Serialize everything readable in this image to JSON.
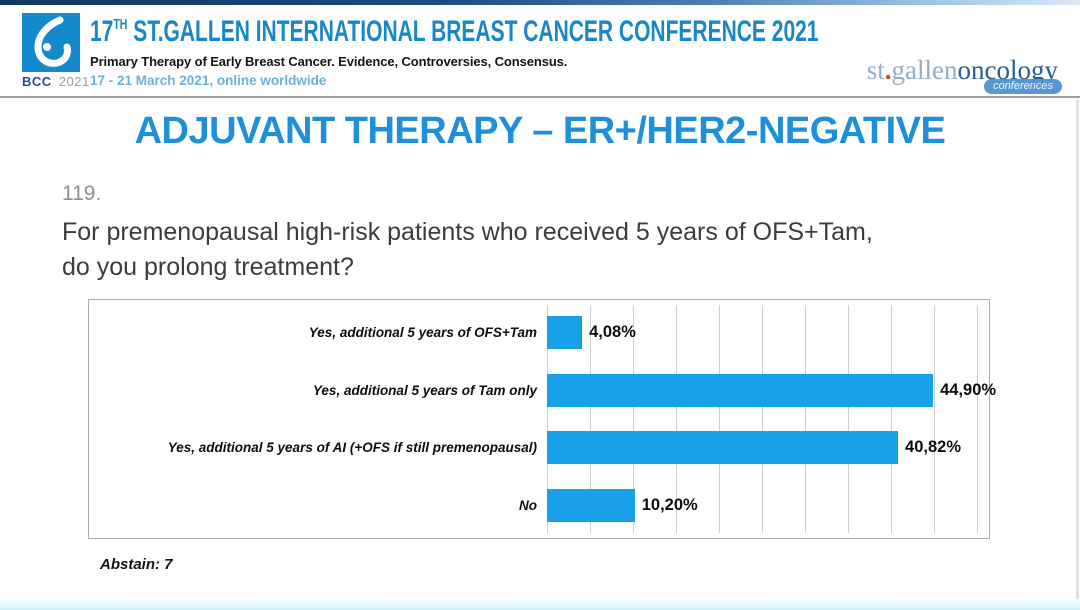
{
  "header": {
    "badge": {
      "abbr": "BCC",
      "year": "2021",
      "logo_icon": "bcc-drop-logo",
      "square_color": "#1489cc"
    },
    "conference": {
      "number": "17",
      "ordinal": "TH",
      "name": " ST.GALLEN INTERNATIONAL BREAST CANCER CONFERENCE 2021",
      "subtitle": "Primary Therapy of Early Breast Cancer. Evidence, Controversies, Consensus.",
      "dates": "17 - 21 March 2021, online worldwide"
    },
    "org_logo": {
      "part1": "st",
      "dot": ".",
      "part2": "gallen",
      "part3": "oncology",
      "badge": "conferences"
    }
  },
  "slide": {
    "title": "ADJUVANT THERAPY – ER+/HER2-NEGATIVE",
    "question": {
      "number": "119.",
      "lines": [
        "For premenopausal high-risk patients who received 5 years of OFS+Tam,",
        "do you prolong treatment?"
      ]
    },
    "abstain": "Abstain: 7"
  },
  "chart_data": {
    "type": "bar",
    "orientation": "horizontal",
    "title": "",
    "categories": [
      "Yes, additional 5 years of OFS+Tam",
      "Yes, additional 5 years of Tam only",
      "Yes, additional 5 years of AI (+OFS if still premenopausal)",
      "No"
    ],
    "values": [
      4.08,
      44.9,
      40.82,
      10.2
    ],
    "value_labels": [
      "4,08%",
      "44,90%",
      "40,82%",
      "10,20%"
    ],
    "xlabel": "",
    "ylabel": "",
    "xlim": [
      0,
      50
    ],
    "gridline_step": 5,
    "grid": true,
    "legend": false,
    "bar_color": "#18a1e9"
  },
  "colors": {
    "accent_blue": "#1e8fd8",
    "conference_title_blue": "#1a86ca",
    "dates_blue": "#6cb0d8",
    "bar_blue": "#18a1e9"
  }
}
